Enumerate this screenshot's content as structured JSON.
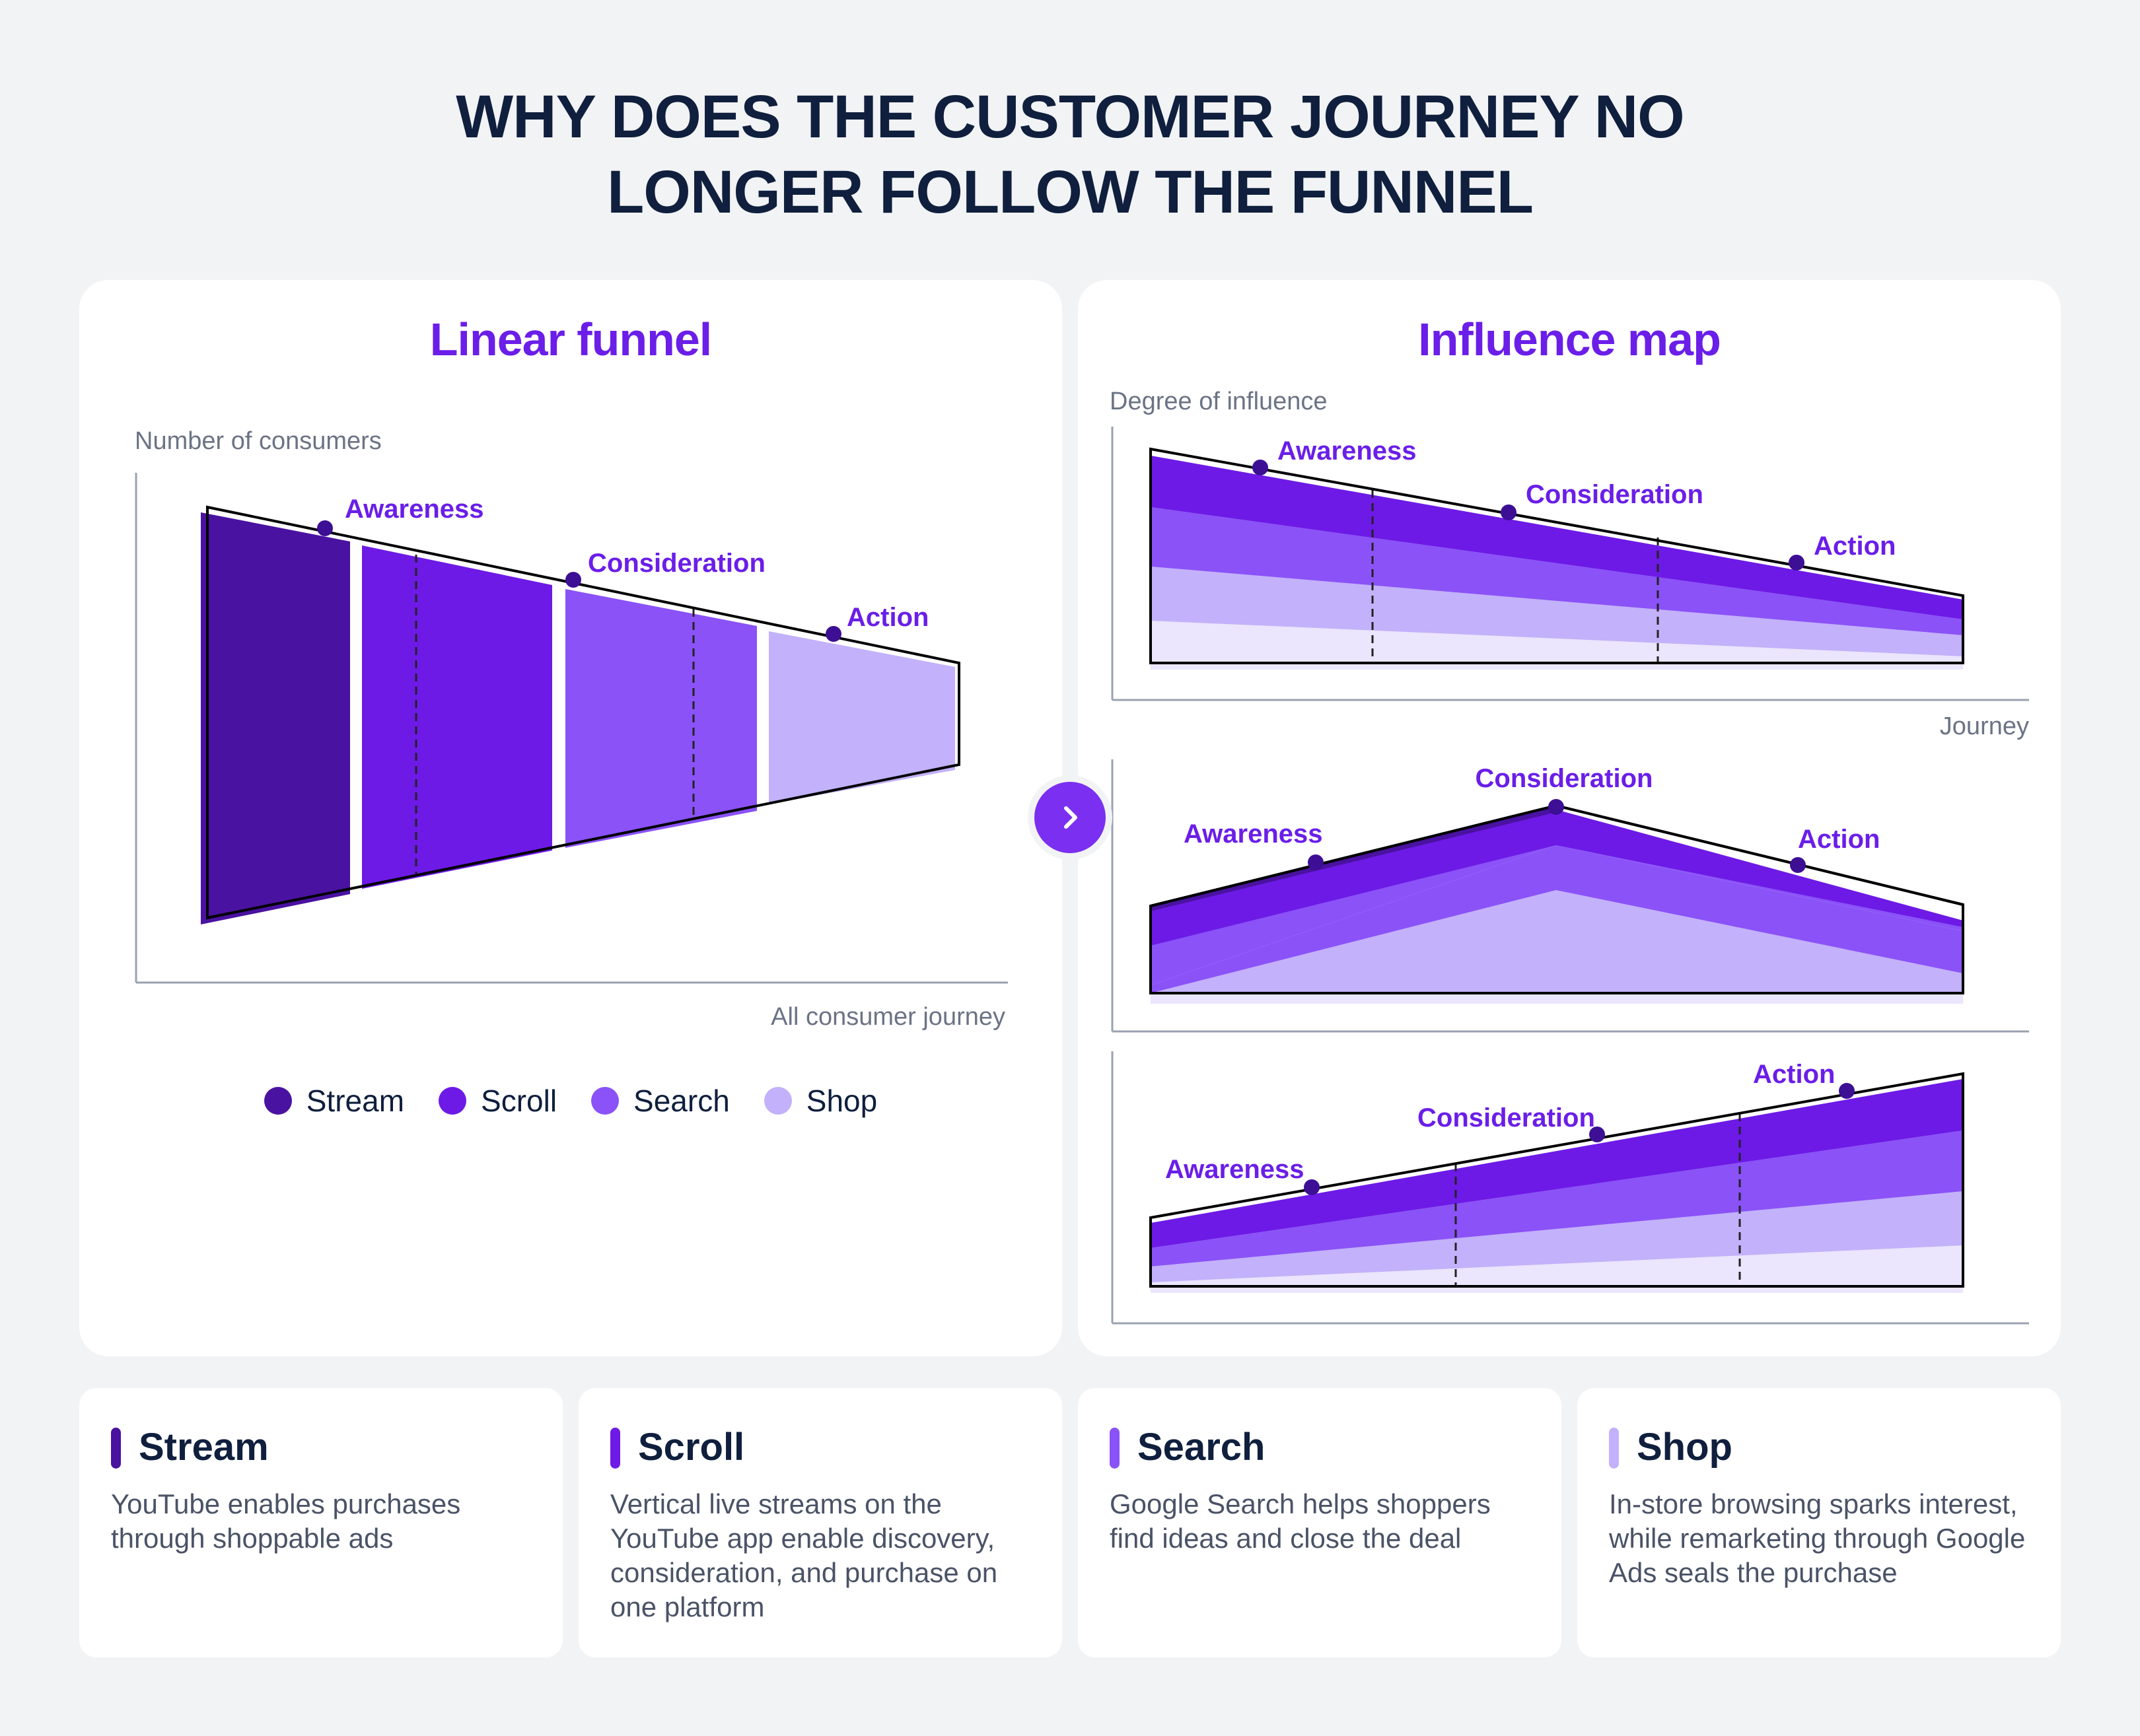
{
  "title": {
    "line1": "WHY DOES THE CUSTOMER JOURNEY NO",
    "line2": "LONGER FOLLOW THE FUNNEL"
  },
  "colors": {
    "stream": "#4a12a0",
    "scroll": "#6d1ae6",
    "search": "#8a52f7",
    "shop": "#c3b1fb",
    "faint": "#ebe5fd",
    "accent": "#6a1ee8"
  },
  "linear_funnel": {
    "title": "Linear funnel",
    "y_axis_label": "Number of consumers",
    "x_axis_label": "All consumer journey",
    "stages": [
      "Awareness",
      "Consideration",
      "Action"
    ]
  },
  "influence_map": {
    "title": "Influence map",
    "y_axis_label": "Degree of influence",
    "x_axis_label": "Journey",
    "charts": [
      {
        "stages": [
          "Awareness",
          "Consideration",
          "Action"
        ]
      },
      {
        "stages": [
          "Awareness",
          "Consideration",
          "Action"
        ]
      },
      {
        "stages": [
          "Awareness",
          "Consideration",
          "Action"
        ]
      }
    ]
  },
  "legend": [
    "Stream",
    "Scroll",
    "Search",
    "Shop"
  ],
  "arrow_icon": "chevron-right-icon",
  "cards": [
    {
      "title": "Stream",
      "description": "YouTube enables purchases through shoppable ads"
    },
    {
      "title": "Scroll",
      "description": "Vertical live streams on the YouTube app enable discovery, consideration, and purchase on one platform"
    },
    {
      "title": "Search",
      "description": "Google Search helps shoppers find ideas and close the deal"
    },
    {
      "title": "Shop",
      "description": "In-store browsing sparks interest, while remarketing through Google Ads seals the purchase"
    }
  ]
}
